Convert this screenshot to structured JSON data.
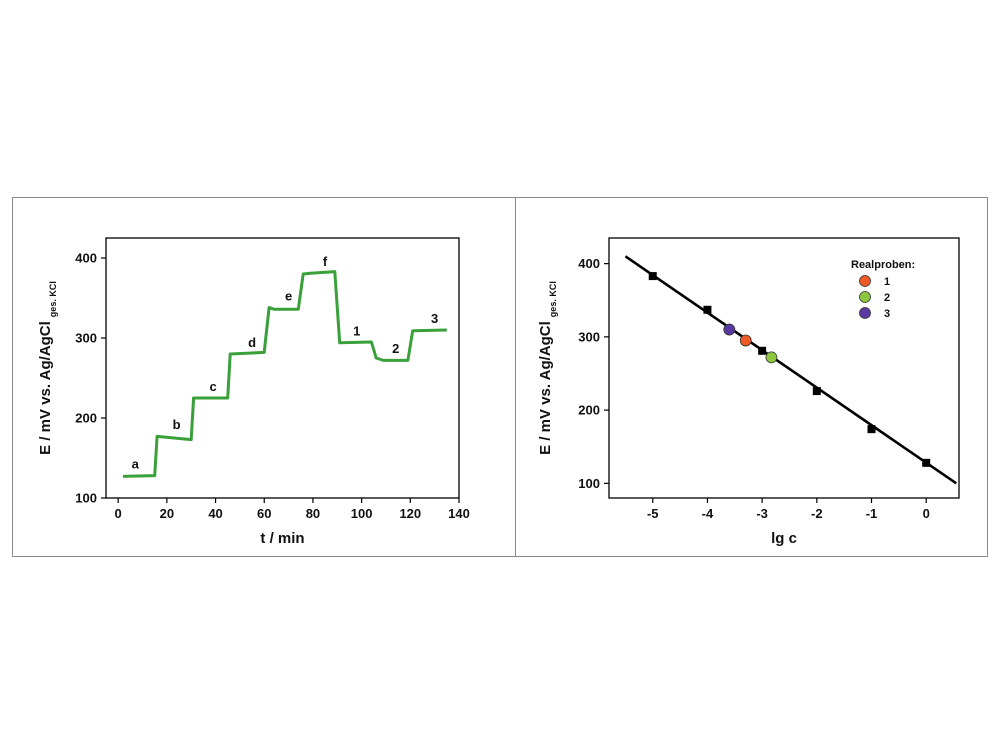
{
  "chart_data": [
    {
      "type": "line",
      "xlabel": "t / min",
      "ylabel_main": "E / mV vs. Ag/AgCl",
      "ylabel_sub": "ges. KCl",
      "xlim": [
        -5,
        140
      ],
      "ylim": [
        100,
        425
      ],
      "xticks": [
        0,
        20,
        40,
        60,
        80,
        100,
        120,
        140
      ],
      "yticks": [
        100,
        200,
        300,
        400
      ],
      "line_color": "#3aa03a",
      "series": [
        {
          "x": [
            2,
            15,
            16,
            30,
            31,
            45,
            46,
            60,
            62,
            64,
            74,
            76,
            79,
            89,
            91,
            104,
            106,
            109,
            119,
            121,
            135
          ],
          "y": [
            127,
            128,
            177,
            173,
            225,
            225,
            280,
            282,
            338,
            336,
            336,
            380,
            381,
            383,
            294,
            295,
            275,
            272,
            272,
            309,
            310
          ]
        }
      ],
      "annotations": [
        {
          "text": "a",
          "x": 7,
          "y": 137
        },
        {
          "text": "b",
          "x": 24,
          "y": 186
        },
        {
          "text": "c",
          "x": 39,
          "y": 234
        },
        {
          "text": "d",
          "x": 55,
          "y": 289
        },
        {
          "text": "e",
          "x": 70,
          "y": 347
        },
        {
          "text": "f",
          "x": 85,
          "y": 390
        },
        {
          "text": "1",
          "x": 98,
          "y": 303
        },
        {
          "text": "2",
          "x": 114,
          "y": 281
        },
        {
          "text": "3",
          "x": 130,
          "y": 319
        }
      ]
    },
    {
      "type": "scatter",
      "xlabel": "lg c",
      "ylabel_main": "E / mV vs. Ag/AgCl",
      "ylabel_sub": "ges. KCl",
      "xlim": [
        -5.8,
        0.6
      ],
      "ylim": [
        80,
        435
      ],
      "xticks": [
        -5,
        -4,
        -3,
        -2,
        -1,
        0
      ],
      "yticks": [
        100,
        200,
        300,
        400
      ],
      "calibration_points": {
        "x": [
          -5,
          -4,
          -3,
          -2,
          -1,
          0
        ],
        "y": [
          383,
          337,
          281,
          226,
          174,
          128
        ]
      },
      "fit_line": {
        "x": [
          -5.5,
          0.55
        ],
        "y": [
          410,
          100
        ]
      },
      "legend_title": "Realproben:",
      "legend_position": "top-right",
      "samples": [
        {
          "name": "1",
          "color": "#ee5a24",
          "x": -3.3,
          "y": 295
        },
        {
          "name": "2",
          "color": "#8cc63f",
          "x": -2.83,
          "y": 272
        },
        {
          "name": "3",
          "color": "#5a3aa0",
          "x": -3.6,
          "y": 310
        }
      ]
    }
  ]
}
